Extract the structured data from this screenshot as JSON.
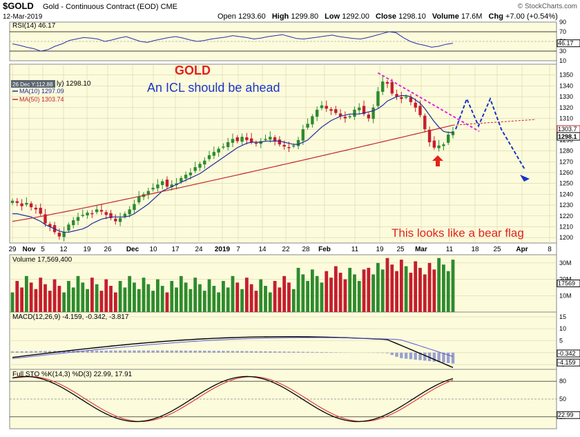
{
  "header": {
    "symbol": "$GOLD",
    "name": "Gold - Continuous Contract (EOD)",
    "exchange": "CME",
    "date": "12-Mar-2019",
    "watermark": "© StockCharts.com",
    "ohlc": {
      "open_label": "Open",
      "open": "1293.60",
      "high_label": "High",
      "high": "1299.80",
      "low_label": "Low",
      "low": "1292.00",
      "close_label": "Close",
      "close": "1298.10",
      "volume_label": "Volume",
      "volume": "17.6M",
      "chg_label": "Chg",
      "chg": "+7.00 (+0.54%)"
    }
  },
  "colors": {
    "panel_bg": "#fcfbdc",
    "up": "#2e8b2e",
    "down": "#c41e2e",
    "ma10": "#1f2b9c",
    "ma50": "#c0262b",
    "annotation_red": "#e2231a",
    "annotation_blue": "#1c35c9",
    "projection": "#1533c8",
    "bearflag": "#e025d8",
    "macd_line": "#000000",
    "signal_line": "#5a5ad8",
    "histogram": "#9aa0d0",
    "sto_k": "#000000",
    "sto_d": "#d8332a",
    "grid": "#d9d6a8"
  },
  "chart_data": [
    {
      "type": "line",
      "name": "rsi-panel",
      "label": "RSI(14) 46.17",
      "ylim": [
        10,
        90
      ],
      "ticks": [
        90,
        70,
        50,
        30,
        10
      ],
      "last_value_label": "46.17",
      "values": [
        45,
        42,
        38,
        35,
        30,
        33,
        40,
        45,
        52,
        55,
        58,
        57,
        55,
        50,
        53,
        57,
        60,
        55,
        50,
        48,
        52,
        55,
        58,
        60,
        57,
        53,
        50,
        52,
        55,
        57,
        59,
        62,
        60,
        58,
        55,
        57,
        60,
        62,
        64,
        60,
        56,
        55,
        57,
        59,
        61,
        63,
        60,
        58,
        56,
        55,
        58,
        62,
        66,
        70,
        68,
        58,
        50,
        45,
        42,
        38,
        40,
        44,
        46.17
      ]
    },
    {
      "type": "candlestick",
      "name": "price-panel",
      "ylim": [
        1195,
        1360
      ],
      "ticks": [
        1350,
        1340,
        1330,
        1320,
        1310,
        1300,
        1290,
        1280,
        1270,
        1260,
        1250,
        1240,
        1230,
        1220,
        1210,
        1200
      ],
      "x_labels": [
        "29",
        "Nov",
        "5",
        "12",
        "19",
        "26",
        "Dec",
        "10",
        "17",
        "24",
        "2019",
        "7",
        "14",
        "22",
        "28",
        "Feb",
        "11",
        "19",
        "25",
        "Mar",
        "11",
        "18",
        "25",
        "Apr",
        "8"
      ],
      "legend": {
        "dec26": "26 Dec Y:112.88",
        "close_tag": "ly) 1298.10",
        "ma10": "MA(10) 1297.09",
        "ma50": "MA(50) 1303.74"
      },
      "right_tags": [
        "1303.7",
        "1298.1"
      ],
      "closes": [
        1234,
        1232,
        1229,
        1232,
        1228,
        1226,
        1222,
        1213,
        1210,
        1205,
        1201,
        1205,
        1212,
        1216,
        1219,
        1221,
        1223,
        1222,
        1226,
        1224,
        1221,
        1218,
        1215,
        1218,
        1222,
        1226,
        1231,
        1238,
        1240,
        1243,
        1246,
        1249,
        1252,
        1247,
        1249,
        1250,
        1255,
        1258,
        1260,
        1265,
        1268,
        1271,
        1276,
        1279,
        1282,
        1284,
        1288,
        1291,
        1289,
        1293,
        1290,
        1288,
        1287,
        1289,
        1291,
        1293,
        1289,
        1286,
        1284,
        1283,
        1285,
        1290,
        1300,
        1305,
        1312,
        1318,
        1322,
        1319,
        1317,
        1315,
        1312,
        1310,
        1312,
        1318,
        1320,
        1314,
        1310,
        1320,
        1335,
        1344,
        1342,
        1333,
        1330,
        1328,
        1330,
        1325,
        1320,
        1313,
        1300,
        1288,
        1283,
        1285,
        1286,
        1295,
        1298
      ],
      "ma10": [
        1222,
        1222,
        1221,
        1220,
        1219,
        1217,
        1215,
        1212,
        1210,
        1208,
        1206,
        1205,
        1205,
        1206,
        1207,
        1208,
        1210,
        1213,
        1215,
        1217,
        1218,
        1219,
        1219,
        1219,
        1219,
        1220,
        1222,
        1225,
        1228,
        1231,
        1235,
        1239,
        1243,
        1245,
        1247,
        1249,
        1251,
        1253,
        1255,
        1257,
        1259,
        1262,
        1265,
        1268,
        1271,
        1274,
        1277,
        1280,
        1283,
        1285,
        1287,
        1288,
        1288,
        1288,
        1289,
        1289,
        1289,
        1289,
        1288,
        1287,
        1286,
        1286,
        1288,
        1290,
        1294,
        1298,
        1302,
        1305,
        1308,
        1310,
        1312,
        1313,
        1314,
        1314,
        1314,
        1315,
        1316,
        1317,
        1319,
        1322,
        1326,
        1328,
        1330,
        1331,
        1331,
        1330,
        1327,
        1324,
        1319,
        1313,
        1307,
        1302,
        1298,
        1297,
        1297
      ],
      "ma50_start": 1215,
      "ma50_end": 1303.74,
      "annotations": {
        "title": "GOLD",
        "subtitle": "An ICL should be ahead",
        "bear_flag": "This looks like a bear flag"
      }
    },
    {
      "type": "bar",
      "name": "volume-panel",
      "label": "Volume 17,569,400",
      "ticks_labels": [
        "30M",
        "20M",
        "10M"
      ],
      "ticks": [
        30,
        20,
        10
      ],
      "last_value_label": "17569",
      "ylim": [
        0,
        35
      ]
    },
    {
      "type": "line",
      "name": "macd-panel",
      "label": "MACD(12,26,9) -4.159, -0.342, -3.817",
      "ylim": [
        -7,
        17
      ],
      "ticks": [
        15,
        10,
        5,
        0,
        -5
      ],
      "last_value_labels": [
        "-0.342",
        "-4.159"
      ]
    },
    {
      "type": "line",
      "name": "sto-panel",
      "label": "Full STO %K(14,3) %D(3) 22.99, 17.91",
      "ylim": [
        0,
        100
      ],
      "ticks": [
        80,
        50,
        20
      ],
      "last_value_label": "22.99"
    }
  ]
}
